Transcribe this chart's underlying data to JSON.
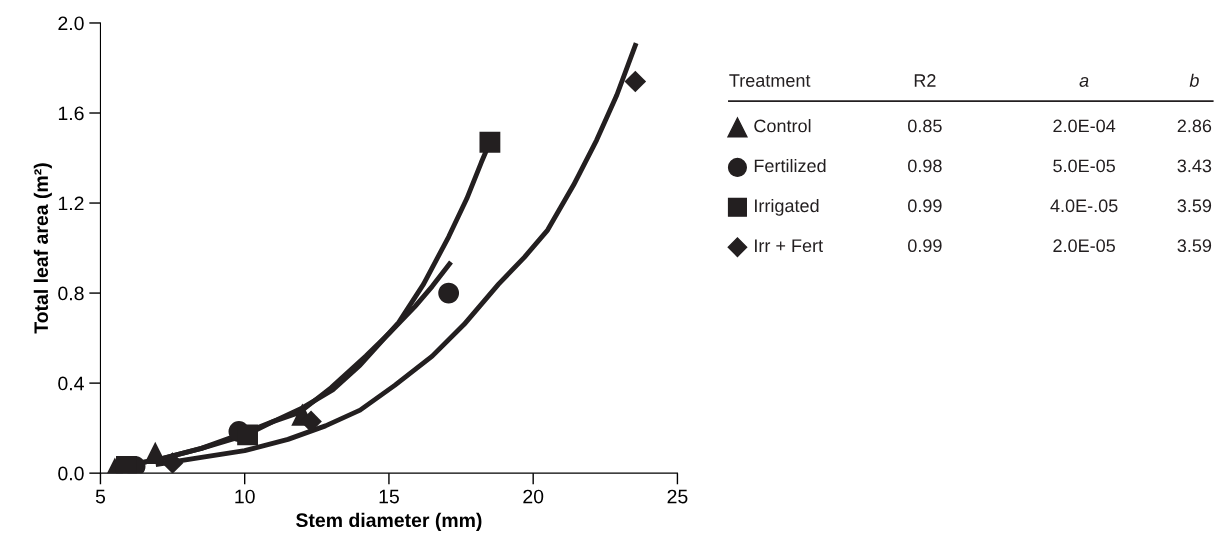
{
  "chart_data": {
    "type": "scatter",
    "xlabel": "Stem diameter (mm)",
    "ylabel": "Total leaf area (m²)",
    "xlim": [
      5,
      25
    ],
    "xticks": [
      5,
      10,
      15,
      20,
      25
    ],
    "ylim": [
      0,
      2.0
    ],
    "yticks": [
      {
        "value": 0,
        "label": "0.0"
      },
      {
        "value": 0.4,
        "label": "0.4"
      },
      {
        "value": 0.8,
        "label": "0.8"
      },
      {
        "value": 1.2,
        "label": "1.2"
      },
      {
        "value": 1.6,
        "label": "1.6"
      },
      {
        "value": 2.0,
        "label": "2.0"
      }
    ],
    "grid": false,
    "legend": "right",
    "legend_title": "Treatment",
    "annotations": [
      "R2",
      "a",
      "b",
      "0.85",
      "2.0E-04",
      "2.86",
      "0.98",
      "5.0E-05",
      "3.43",
      "0.99",
      "4.0E-.05",
      "3.59",
      "0.99",
      "2.0E-05",
      "3.59"
    ],
    "series": [
      {
        "name": "Control",
        "marker": "triangle",
        "color": "#231f20",
        "x": [
          5.5,
          6.9,
          12.0
        ],
        "values": [
          0.02,
          0.09,
          0.26
        ]
      },
      {
        "name": "Fertilized",
        "marker": "circle",
        "color": "#231f20",
        "x": [
          6.2,
          9.8,
          17.07
        ],
        "values": [
          0.03,
          0.185,
          0.8
        ]
      },
      {
        "name": "Irrigated",
        "marker": "square",
        "color": "#231f20",
        "x": [
          5.9,
          10.1,
          18.5
        ],
        "values": [
          0.03,
          0.17,
          1.47
        ]
      },
      {
        "name": "Irr + Fert",
        "marker": "diamond",
        "color": "#231f20",
        "x": [
          7.5,
          12.3,
          23.54
        ],
        "values": [
          0.045,
          0.23,
          1.74
        ]
      },
      {
        "type": "line",
        "color": "#231f20",
        "x": [
          5.7,
          7,
          8.5,
          10.06,
          11,
          12,
          13.05,
          14,
          15.34,
          16.2,
          17.07,
          17.7,
          18.2,
          18.5
        ],
        "values": [
          0.03,
          0.06,
          0.11,
          0.17,
          0.23,
          0.29,
          0.37,
          0.48,
          0.67,
          0.84,
          1.05,
          1.22,
          1.38,
          1.47
        ]
      },
      {
        "type": "line",
        "color": "#231f20",
        "x": [
          5.7,
          7,
          8.5,
          9.8,
          11,
          11.9,
          13,
          14.2,
          15,
          15.9,
          16.5,
          17.1
        ],
        "values": [
          0.03,
          0.06,
          0.11,
          0.17,
          0.23,
          0.27,
          0.38,
          0.52,
          0.62,
          0.74,
          0.83,
          0.93
        ]
      },
      {
        "type": "line",
        "color": "#231f20",
        "x": [
          7.0,
          8.5,
          10.0,
          11.5,
          12.8,
          14,
          15.2,
          16.5,
          17.6,
          18.8,
          19.7,
          20.5,
          21.4,
          22.2,
          22.9,
          23.54
        ],
        "values": [
          0.04,
          0.07,
          0.1,
          0.15,
          0.21,
          0.28,
          0.39,
          0.52,
          0.66,
          0.84,
          0.96,
          1.08,
          1.28,
          1.48,
          1.68,
          1.9
        ]
      }
    ]
  }
}
